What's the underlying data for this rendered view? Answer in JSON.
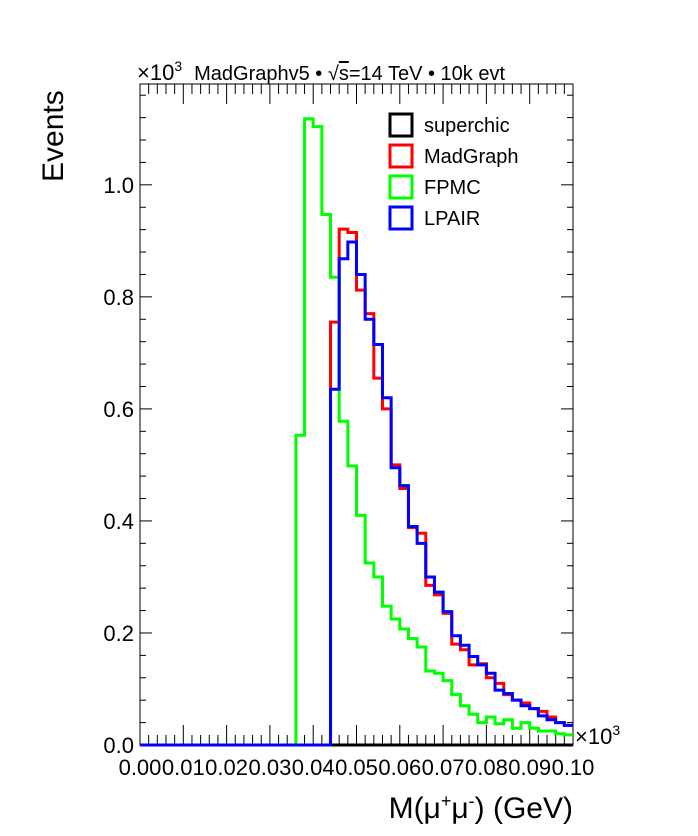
{
  "chart_data": {
    "type": "histogram-step",
    "header": {
      "exponent_prefix": "×10",
      "exponent": "3",
      "text_pre": "MadGraphv5 • ",
      "sqrt_symbol": "√",
      "sqrt_arg": "s",
      "text_post": "=14 TeV • 10k evt"
    },
    "xlabel": {
      "pre": "M(μ",
      "sup1": "+",
      "mid": "μ",
      "sup2": "-",
      "post": ") (GeV)"
    },
    "ylabel": "Events",
    "x_exponent_label": "×10",
    "x_exponent": "3",
    "xlim": [
      0.0,
      0.1
    ],
    "ylim": [
      0.0,
      1.18
    ],
    "x_ticks": [
      "0.00",
      "0.01",
      "0.02",
      "0.03",
      "0.04",
      "0.05",
      "0.06",
      "0.07",
      "0.08",
      "0.09",
      "0.10"
    ],
    "y_ticks": [
      "0.0",
      "0.2",
      "0.4",
      "0.6",
      "0.8",
      "1.0"
    ],
    "bin_width": 0.002,
    "bin_start": 0.0,
    "series": [
      {
        "name": "superchic",
        "color": "#000000",
        "values": [
          0,
          0,
          0,
          0,
          0,
          0,
          0,
          0,
          0,
          0,
          0,
          0,
          0,
          0,
          0,
          0,
          0,
          0,
          0,
          0,
          0,
          0,
          0,
          0,
          0,
          0,
          0,
          0,
          0,
          0,
          0,
          0,
          0,
          0,
          0,
          0,
          0,
          0,
          0,
          0,
          0,
          0,
          0,
          0,
          0,
          0,
          0,
          0,
          0,
          0
        ]
      },
      {
        "name": "MadGraph",
        "color": "#ff0000",
        "values": [
          0,
          0,
          0,
          0,
          0,
          0,
          0,
          0,
          0,
          0,
          0,
          0,
          0,
          0,
          0,
          0,
          0,
          0,
          0,
          0,
          0,
          0,
          0.755,
          0.921,
          0.915,
          0.812,
          0.77,
          0.655,
          0.6,
          0.5,
          0.458,
          0.388,
          0.378,
          0.285,
          0.268,
          0.235,
          0.18,
          0.17,
          0.143,
          0.145,
          0.12,
          0.11,
          0.09,
          0.08,
          0.075,
          0.065,
          0.06,
          0.05,
          0.04,
          0.035
        ]
      },
      {
        "name": "FPMC",
        "color": "#00ff00",
        "values": [
          0,
          0,
          0,
          0,
          0,
          0,
          0,
          0,
          0,
          0,
          0,
          0,
          0,
          0,
          0,
          0,
          0,
          0,
          0,
          0,
          0,
          0,
          0.712,
          0.578,
          0.498,
          0.41,
          0.325,
          0.3,
          0.248,
          0.225,
          0.207,
          0.19,
          0.175,
          0.132,
          0.128,
          0.115,
          0.09,
          0.07,
          0.055,
          0.04,
          0.05,
          0.038,
          0.045,
          0.03,
          0.04,
          0.03,
          0.025,
          0.025,
          0.02,
          0.018
        ]
      },
      {
        "name": "LPAIR",
        "color": "#0000ff",
        "values": [
          0,
          0,
          0,
          0,
          0,
          0,
          0,
          0,
          0,
          0,
          0,
          0,
          0,
          0,
          0,
          0,
          0,
          0,
          0,
          0,
          0,
          0,
          0.635,
          0.868,
          0.898,
          0.84,
          0.76,
          0.715,
          0.62,
          0.495,
          0.463,
          0.39,
          0.36,
          0.3,
          0.273,
          0.238,
          0.195,
          0.178,
          0.158,
          0.143,
          0.128,
          0.098,
          0.092,
          0.08,
          0.07,
          0.065,
          0.052,
          0.045,
          0.04,
          0.035
        ]
      }
    ],
    "fpmc_prefix": [
      0,
      0,
      0,
      0,
      0,
      0,
      0,
      0,
      0,
      0,
      0,
      0,
      0,
      0,
      0,
      0,
      0,
      0,
      0.553,
      1.118,
      1.104,
      0.947,
      0.835
    ],
    "legend": {
      "placement": "top-right",
      "entries": [
        "superchic",
        "MadGraph",
        "FPMC",
        "LPAIR"
      ]
    },
    "grid": false
  }
}
